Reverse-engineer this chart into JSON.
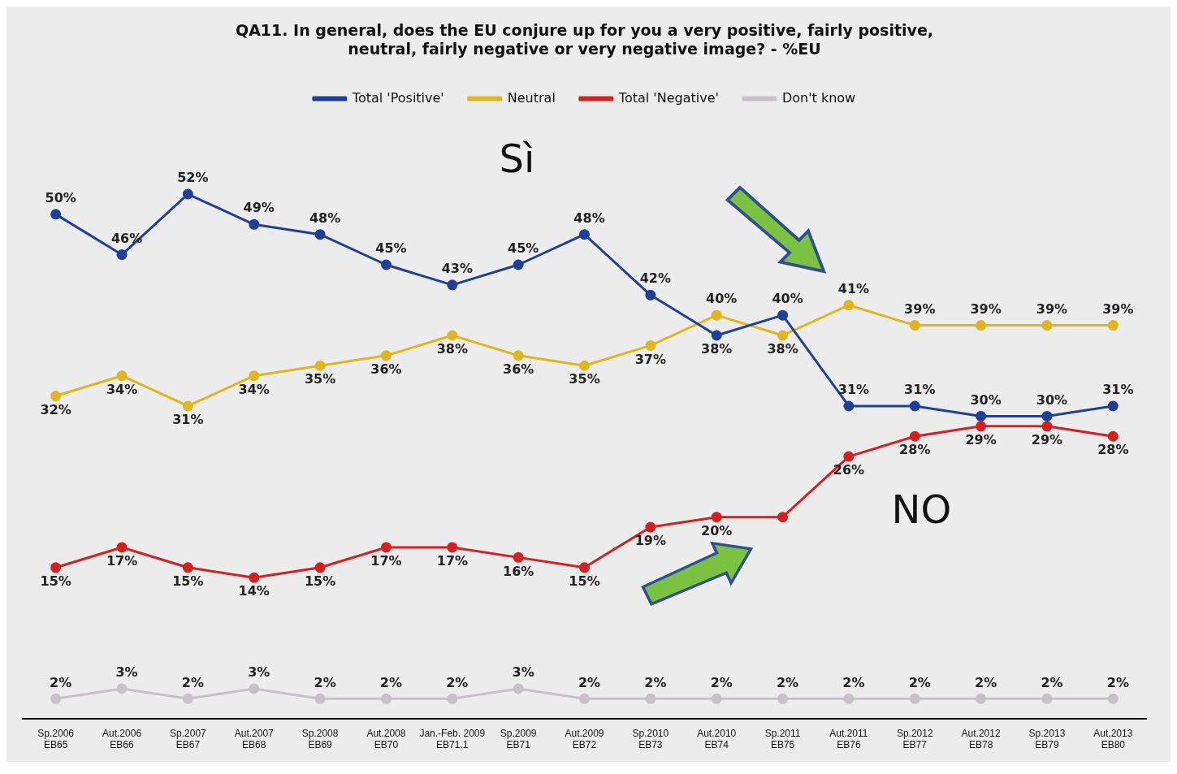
{
  "chart_data": {
    "type": "line",
    "title": [
      "QA11. In general, does the EU conjure up for you a very positive, fairly positive,",
      "neutral, fairly negative or very negative image? - %EU"
    ],
    "categories": [
      "Sp.2006\nEB65",
      "Aut.2006\nEB66",
      "Sp.2007\nEB67",
      "Aut.2007\nEB68",
      "Sp.2008\nEB69",
      "Aut.2008\nEB70",
      "Jan.-Feb. 2009\nEB71.1",
      "Sp.2009\nEB71",
      "Aut.2009\nEB72",
      "Sp.2010\nEB73",
      "Aut.2010\nEB74",
      "Sp.2011\nEB75",
      "Aut.2011\nEB76",
      "Sp.2012\nEB77",
      "Aut.2012\nEB78",
      "Sp.2013\nEB79",
      "Aut.2013\nEB80"
    ],
    "series": [
      {
        "name": "Total 'Positive'",
        "color": "#1f3f99",
        "values": [
          50,
          46,
          52,
          49,
          48,
          45,
          43,
          45,
          48,
          42,
          38,
          40,
          31,
          31,
          30,
          30,
          31
        ],
        "value_labels": [
          "50%",
          "46%",
          "52%",
          "49%",
          "48%",
          "45%",
          "43%",
          "45%",
          "48%",
          "42%",
          "38%",
          "40%",
          "31%",
          "31%",
          "30%",
          "30%",
          "31%"
        ]
      },
      {
        "name": "Neutral",
        "color": "#e0b520",
        "values": [
          32,
          34,
          31,
          34,
          35,
          36,
          38,
          36,
          35,
          37,
          40,
          38,
          41,
          39,
          39,
          39,
          39
        ],
        "value_labels": [
          "32%",
          "34%",
          "31%",
          "34%",
          "35%",
          "36%",
          "38%",
          "36%",
          "35%",
          "37%",
          "40%",
          "38%",
          "41%",
          "39%",
          "39%",
          "39%",
          "39%"
        ]
      },
      {
        "name": "Total 'Negative'",
        "color": "#d42020",
        "values": [
          15,
          17,
          15,
          14,
          15,
          17,
          17,
          16,
          15,
          19,
          20,
          20,
          26,
          28,
          29,
          29,
          28
        ],
        "value_labels": [
          "15%",
          "17%",
          "15%",
          "14%",
          "15%",
          "17%",
          "17%",
          "16%",
          "15%",
          "19%",
          "20%",
          null,
          "26%",
          "28%",
          "29%",
          "29%",
          "28%"
        ]
      },
      {
        "name": "Don't know",
        "color": "#c8c0c8",
        "values": [
          2,
          3,
          2,
          3,
          2,
          2,
          2,
          3,
          2,
          2,
          2,
          2,
          2,
          2,
          2,
          2,
          2
        ],
        "value_labels": [
          "2%",
          "3%",
          "2%",
          "3%",
          "2%",
          "2%",
          "2%",
          "3%",
          "2%",
          "2%",
          "2%",
          "2%",
          "2%",
          "2%",
          "2%",
          "2%",
          "2%"
        ]
      }
    ],
    "legend": "top",
    "marker": "circle",
    "grid": false,
    "annotations": [
      "Sì",
      "NO"
    ]
  }
}
